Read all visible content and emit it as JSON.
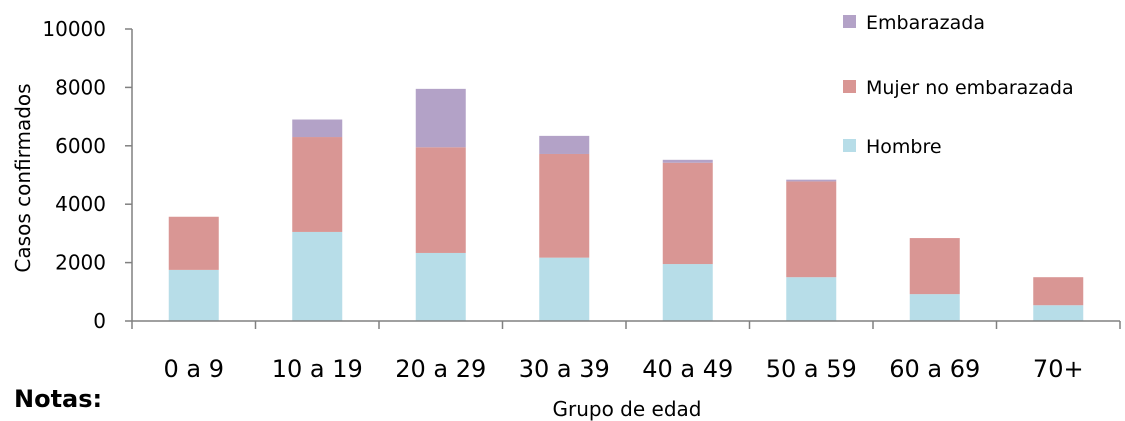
{
  "notes_label": "Notas:",
  "chart_data": {
    "type": "bar",
    "stacked": true,
    "categories": [
      "0 a 9",
      "10 a 19",
      "20 a 29",
      "30 a 39",
      "40 a 49",
      "50 a 59",
      "60 a 69",
      "70+"
    ],
    "series": [
      {
        "name": "Hombre",
        "color": "#b7dde8",
        "values": [
          1750,
          3050,
          2330,
          2170,
          1950,
          1500,
          920,
          540
        ]
      },
      {
        "name": "Mujer no embarazada",
        "color": "#d99694",
        "values": [
          1820,
          3250,
          3620,
          3550,
          3470,
          3280,
          1920,
          960
        ]
      },
      {
        "name": "Embarazada",
        "color": "#b3a2c7",
        "values": [
          0,
          600,
          2000,
          620,
          100,
          60,
          0,
          0
        ]
      }
    ],
    "xlabel": "Grupo de edad",
    "ylabel": "Casos confirmados",
    "ylim": [
      0,
      10000
    ],
    "yticks": [
      "0",
      "2000",
      "4000",
      "6000",
      "8000",
      "10000"
    ],
    "grid": false,
    "legend_position": "top-right",
    "legend_order": [
      "Embarazada",
      "Mujer no embarazada",
      "Hombre"
    ]
  }
}
